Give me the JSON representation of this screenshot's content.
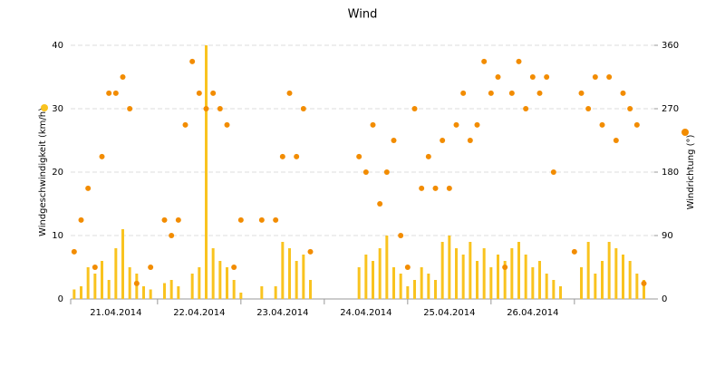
{
  "chart_data": {
    "type": "bar",
    "title": "Wind",
    "categories": [
      null,
      null,
      null,
      null,
      null,
      null,
      "21.04.2014",
      null,
      null,
      null,
      null,
      null,
      null,
      null,
      null,
      null,
      null,
      null,
      "22.04.2014",
      null,
      null,
      null,
      null,
      null,
      null,
      null,
      null,
      null,
      null,
      null,
      "23.04.2014",
      null,
      null,
      null,
      null,
      null,
      null,
      null,
      null,
      null,
      null,
      null,
      "24.04.2014",
      null,
      null,
      null,
      null,
      null,
      null,
      null,
      null,
      null,
      null,
      null,
      "25.04.2014",
      null,
      null,
      null,
      null,
      null,
      null,
      null,
      null,
      null,
      null,
      null,
      "26.04.2014",
      null,
      null,
      null,
      null,
      null,
      null,
      null,
      null,
      null,
      null,
      null,
      null,
      null,
      null,
      null,
      null,
      null
    ],
    "series": [
      {
        "name": "Windgeschwindigkeit (km/h)",
        "type": "bar",
        "color": "#f9c31f",
        "values": [
          1.5,
          2,
          5,
          4,
          6,
          3,
          8,
          11,
          5,
          4,
          2,
          1.5,
          null,
          2.5,
          3,
          2,
          null,
          4,
          5,
          40,
          8,
          6,
          5,
          3,
          1,
          null,
          null,
          2,
          null,
          2,
          9,
          8,
          6,
          7,
          3,
          null,
          null,
          null,
          null,
          null,
          null,
          5,
          7,
          6,
          8,
          10,
          5,
          4,
          2,
          3,
          5,
          4,
          3,
          9,
          10,
          8,
          7,
          9,
          6,
          8,
          5,
          7,
          6,
          8,
          9,
          7,
          5,
          6,
          4,
          3,
          2,
          null,
          null,
          5,
          9,
          4,
          6,
          9,
          8,
          7,
          6,
          4,
          3,
          null
        ]
      },
      {
        "name": "Windrichtung (°)",
        "type": "scatter",
        "axis": "y2",
        "color": "#f28c00",
        "values": [
          67,
          112,
          157,
          45,
          202,
          292,
          292,
          315,
          270,
          22,
          null,
          45,
          null,
          112,
          90,
          112,
          247,
          337,
          292,
          270,
          292,
          270,
          247,
          45,
          112,
          null,
          null,
          112,
          null,
          112,
          202,
          292,
          202,
          270,
          67,
          null,
          null,
          null,
          null,
          null,
          null,
          202,
          180,
          247,
          135,
          180,
          225,
          90,
          45,
          270,
          157,
          202,
          157,
          225,
          157,
          247,
          292,
          225,
          247,
          337,
          292,
          315,
          45,
          292,
          337,
          270,
          315,
          292,
          315,
          180,
          null,
          null,
          67,
          292,
          270,
          315,
          247,
          315,
          225,
          292,
          270,
          247,
          22,
          null
        ]
      }
    ],
    "ylim": [
      0,
      40
    ],
    "yticks": [
      0,
      10,
      20,
      30,
      40
    ],
    "y2lim": [
      0,
      360
    ],
    "y2ticks": [
      0,
      90,
      180,
      270,
      360
    ],
    "grid": true
  }
}
